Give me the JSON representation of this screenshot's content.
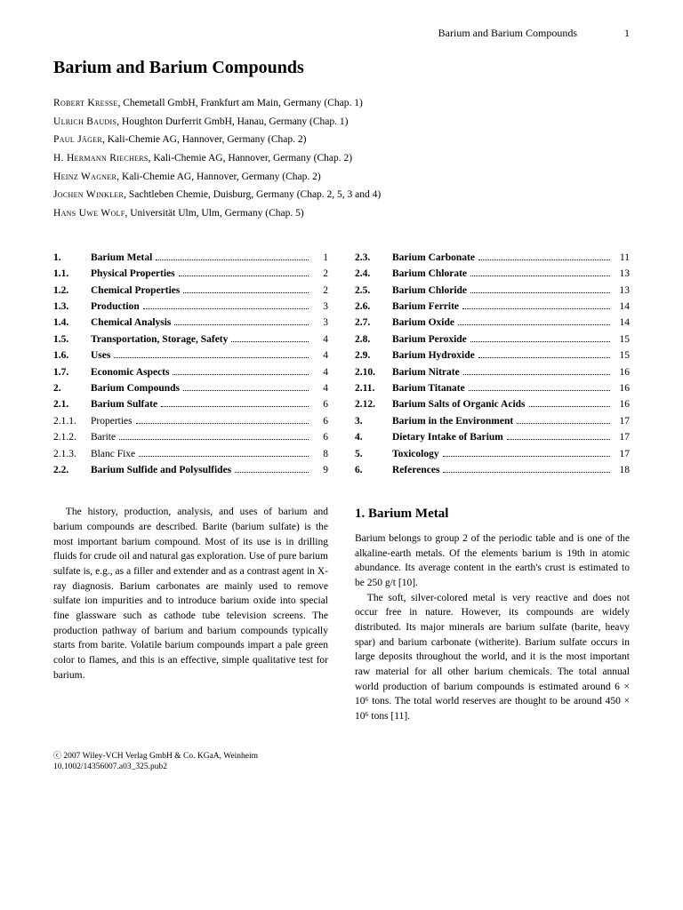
{
  "runningHead": {
    "title": "Barium and Barium Compounds",
    "page": "1"
  },
  "title": "Barium and Barium Compounds",
  "authors": [
    {
      "name": "Robert Kresse",
      "affil": ", Chemetall GmbH, Frankfurt am Main, Germany (Chap. 1)"
    },
    {
      "name": "Ulrich Baudis",
      "affil": ", Houghton Durferrit GmbH, Hanau, Germany (Chap. 1)"
    },
    {
      "name": "Paul Jäger",
      "affil": ", Kali-Chemie AG, Hannover, Germany (Chap. 2)"
    },
    {
      "name": "H. Hermann Riechers",
      "affil": ", Kali-Chemie AG, Hannover, Germany (Chap. 2)"
    },
    {
      "name": "Heinz Wagner",
      "affil": ", Kali-Chemie AG, Hannover, Germany (Chap. 2)"
    },
    {
      "name": "Jochen Winkler",
      "affil": ", Sachtleben Chemie, Duisburg, Germany (Chap. 2, 5, 3 and 4)"
    },
    {
      "name": "Hans Uwe Wolf",
      "affil": ", Universität Ulm, Ulm, Germany (Chap. 5)"
    }
  ],
  "tocLeft": [
    {
      "num": "1.",
      "label": "Barium Metal",
      "page": "1",
      "bold": true
    },
    {
      "num": "1.1.",
      "label": "Physical Properties",
      "page": "2",
      "bold": true
    },
    {
      "num": "1.2.",
      "label": "Chemical Properties",
      "page": "2",
      "bold": true
    },
    {
      "num": "1.3.",
      "label": "Production",
      "page": "3",
      "bold": true
    },
    {
      "num": "1.4.",
      "label": "Chemical Analysis",
      "page": "3",
      "bold": true
    },
    {
      "num": "1.5.",
      "label": "Transportation, Storage, Safety",
      "page": "4",
      "bold": true
    },
    {
      "num": "1.6.",
      "label": "Uses",
      "page": "4",
      "bold": true
    },
    {
      "num": "1.7.",
      "label": "Economic Aspects",
      "page": "4",
      "bold": true
    },
    {
      "num": "2.",
      "label": "Barium Compounds",
      "page": "4",
      "bold": true
    },
    {
      "num": "2.1.",
      "label": "Barium Sulfate",
      "page": "6",
      "bold": true
    },
    {
      "num": "2.1.1.",
      "label": "Properties",
      "page": "6",
      "bold": false
    },
    {
      "num": "2.1.2.",
      "label": "Barite",
      "page": "6",
      "bold": false
    },
    {
      "num": "2.1.3.",
      "label": "Blanc Fixe",
      "page": "8",
      "bold": false
    },
    {
      "num": "2.2.",
      "label": "Barium Sulfide and Polysulfides",
      "page": "9",
      "bold": true
    }
  ],
  "tocRight": [
    {
      "num": "2.3.",
      "label": "Barium Carbonate",
      "page": "11",
      "bold": true
    },
    {
      "num": "2.4.",
      "label": "Barium Chlorate",
      "page": "13",
      "bold": true
    },
    {
      "num": "2.5.",
      "label": "Barium Chloride",
      "page": "13",
      "bold": true
    },
    {
      "num": "2.6.",
      "label": "Barium Ferrite",
      "page": "14",
      "bold": true
    },
    {
      "num": "2.7.",
      "label": "Barium Oxide",
      "page": "14",
      "bold": true
    },
    {
      "num": "2.8.",
      "label": "Barium Peroxide",
      "page": "15",
      "bold": true
    },
    {
      "num": "2.9.",
      "label": "Barium Hydroxide",
      "page": "15",
      "bold": true
    },
    {
      "num": "2.10.",
      "label": "Barium Nitrate",
      "page": "16",
      "bold": true
    },
    {
      "num": "2.11.",
      "label": "Barium Titanate",
      "page": "16",
      "bold": true
    },
    {
      "num": "2.12.",
      "label": "Barium Salts of Organic Acids",
      "page": "16",
      "bold": true
    },
    {
      "num": "3.",
      "label": "Barium in the Environment",
      "page": "17",
      "bold": true
    },
    {
      "num": "4.",
      "label": "Dietary Intake of Barium",
      "page": "17",
      "bold": true
    },
    {
      "num": "5.",
      "label": "Toxicology",
      "page": "17",
      "bold": true
    },
    {
      "num": "6.",
      "label": "References",
      "page": "18",
      "bold": true
    }
  ],
  "abstract": "The history, production, analysis, and uses of barium and barium compounds are described. Barite (barium sulfate) is the most important barium compound. Most of its use is in drilling fluids for crude oil and natural gas exploration. Use of pure barium sulfate is, e.g., as a filler and extender and as a contrast agent in X-ray diagnosis. Barium carbonates are mainly used to remove sulfate ion impurities and to introduce barium oxide into special fine glassware such as cathode tube television screens. The production pathway of barium and barium compounds typically starts from barite. Volatile barium compounds impart a pale green color to flames, and this is an effective, simple qualitative test for barium.",
  "sectionTitle": "1. Barium Metal",
  "body1": "Barium belongs to group 2 of the periodic table and is one of the alkaline-earth metals. Of the elements barium is 19th in atomic abundance. Its average content in the earth's crust is estimated to be 250 g/t [10].",
  "body2": "The soft, silver-colored metal is very reactive and does not occur free in nature. However, its compounds are widely distributed. Its major minerals are barium sulfate (barite, heavy spar) and barium carbonate (witherite). Barium sulfate occurs in large deposits throughout the world, and it is the most important raw material for all other barium chemicals. The total annual world production of barium compounds is estimated around 6 × 10⁶ tons. The total world reserves are thought to be around 450 × 10⁶ tons [11].",
  "footer": {
    "line1": "© 2007 Wiley-VCH Verlag GmbH & Co. KGaA, Weinheim",
    "line2": "10.1002/14356007.a03_325.pub2"
  }
}
